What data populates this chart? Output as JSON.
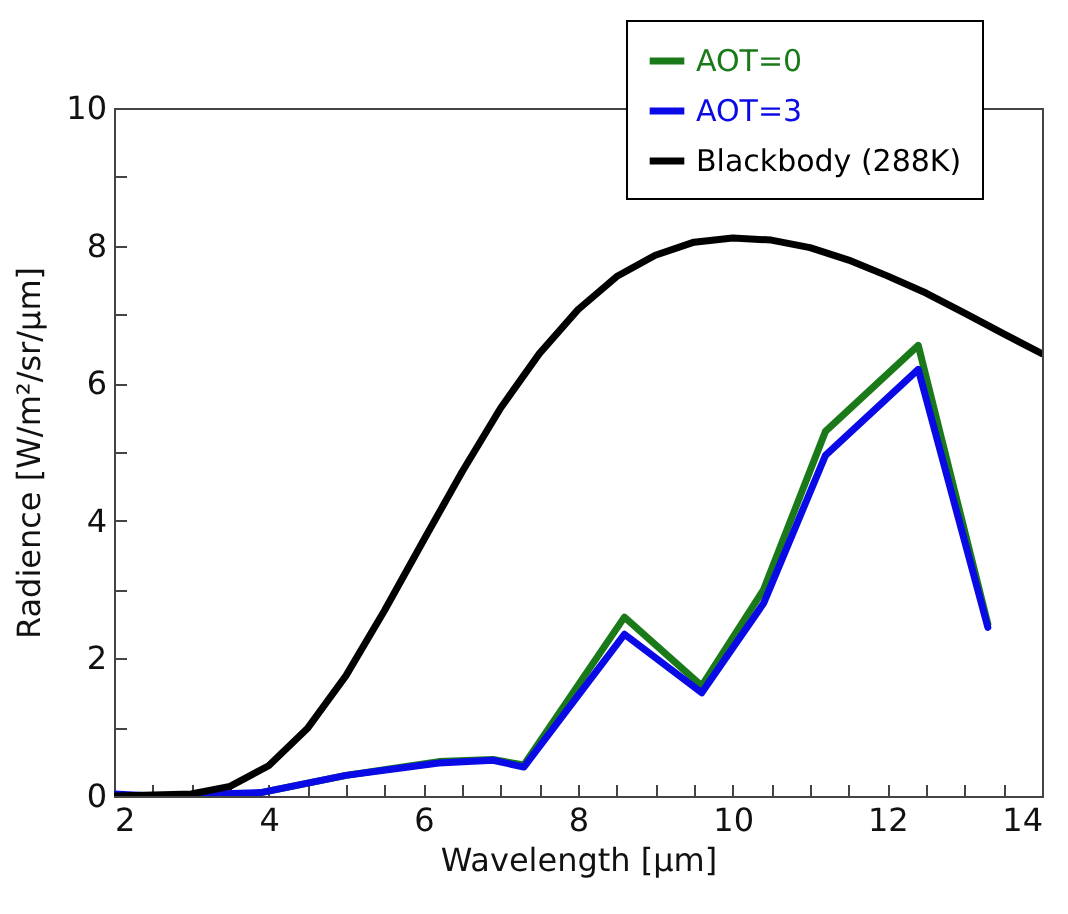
{
  "chart_data": {
    "type": "line",
    "xlabel": "Wavelength [µm]",
    "ylabel": "Radience [W/m²/sr/µm]",
    "xlim": [
      2,
      14
    ],
    "ylim": [
      0,
      10
    ],
    "xticks": [
      2,
      {
        "value": 2.5,
        "label": null
      },
      {
        "value": 3,
        "label": null
      },
      {
        "value": 3.5,
        "label": null
      },
      4,
      {
        "value": 4.5,
        "label": null
      },
      {
        "value": 5,
        "label": null
      },
      {
        "value": 5.5,
        "label": null
      },
      6,
      {
        "value": 6.5,
        "label": null
      },
      {
        "value": 7,
        "label": null
      },
      {
        "value": 7.5,
        "label": null
      },
      8,
      {
        "value": 8.5,
        "label": null
      },
      {
        "value": 9,
        "label": null
      },
      {
        "value": 9.5,
        "label": null
      },
      10,
      {
        "value": 10.5,
        "label": null
      },
      {
        "value": 11,
        "label": null
      },
      {
        "value": 11.5,
        "label": null
      },
      12,
      {
        "value": 12.5,
        "label": null
      },
      {
        "value": 13,
        "label": null
      },
      {
        "value": 13.5,
        "label": null
      },
      14
    ],
    "yticks": [
      0,
      {
        "value": 1,
        "label": null
      },
      2,
      {
        "value": 3,
        "label": null
      },
      4,
      {
        "value": 5,
        "label": null
      },
      6,
      {
        "value": 7,
        "label": null
      },
      8,
      {
        "value": 9,
        "label": null
      },
      10
    ],
    "grid": false,
    "legend": "top right",
    "marker": "none",
    "line_style": "solid",
    "series": [
      {
        "name": "AOT=0",
        "color": "#1a7a1a",
        "x": [
          3.9,
          5,
          6.2,
          6.9,
          7.3,
          8.6,
          9.6,
          10.4,
          11.2,
          12.4,
          13.3
        ],
        "values": [
          0.05,
          0.3,
          0.5,
          0.53,
          0.45,
          2.6,
          1.6,
          3.0,
          5.3,
          6.55,
          2.5
        ]
      },
      {
        "name": "AOT=3",
        "color": "#0a0ae6",
        "x": [
          2,
          2.5,
          3,
          3.9,
          5,
          6.2,
          6.9,
          7.3,
          8.6,
          9.6,
          10.4,
          11.2,
          12.4,
          13.3
        ],
        "values": [
          0.03,
          0,
          0.02,
          0.05,
          0.3,
          0.48,
          0.52,
          0.42,
          2.35,
          1.5,
          2.8,
          4.95,
          6.2,
          2.45
        ]
      },
      {
        "name": "Blackbody (288K)",
        "color": "#000000",
        "x": [
          2,
          3,
          3.5,
          4,
          4.5,
          5,
          5.5,
          6,
          6.5,
          7,
          7.5,
          8,
          8.5,
          9,
          9.5,
          10,
          10.5,
          11,
          11.5,
          12,
          12.5,
          13,
          13.5,
          14
        ],
        "values": [
          0,
          0.03,
          0.14,
          0.44,
          0.98,
          1.75,
          2.7,
          3.71,
          4.71,
          5.64,
          6.43,
          7.07,
          7.55,
          7.86,
          8.05,
          8.11,
          8.08,
          7.97,
          7.79,
          7.56,
          7.31,
          7.02,
          6.72,
          6.43
        ]
      }
    ]
  }
}
